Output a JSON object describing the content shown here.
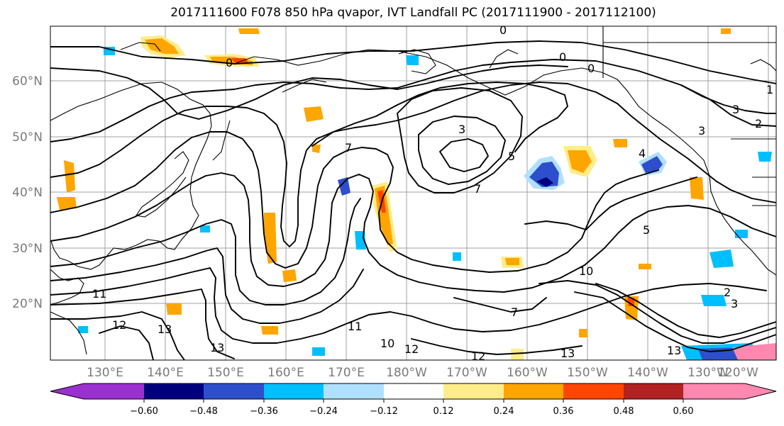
{
  "title": "2017111600 F078 850 hPa qvapor, IVT Landfall PC (2017111900 - 2017112100)",
  "lat_labels": [
    "60°N",
    "50°N",
    "40°N",
    "30°N",
    "20°N"
  ],
  "lon_labels": [
    "130°E",
    "140°E",
    "150°E",
    "160°E",
    "170°E",
    "180°W",
    "170°W",
    "160°W",
    "150°W",
    "140°W",
    "130°W",
    "120°W"
  ],
  "contour_labels": [
    "0",
    "0",
    "0",
    "0",
    "1",
    "2",
    "2",
    "3",
    "3",
    "3",
    "3",
    "4",
    "5",
    "5",
    "7",
    "7",
    "7",
    "10",
    "10",
    "11",
    "11",
    "12",
    "12",
    "12",
    "13",
    "13",
    "13",
    "13"
  ],
  "colorbar": {
    "ticks": [
      "−0.60",
      "−0.48",
      "−0.36",
      "−0.24",
      "−0.12",
      "0.12",
      "0.24",
      "0.36",
      "0.48",
      "0.60"
    ],
    "colors": [
      "#9b30d0",
      "#00007e",
      "#2e4fcc",
      "#00bfff",
      "#b0e0ff",
      "#ffffff",
      "#ffec8b",
      "#ffa500",
      "#ff4500",
      "#b22222",
      "#ff88b0"
    ]
  }
}
